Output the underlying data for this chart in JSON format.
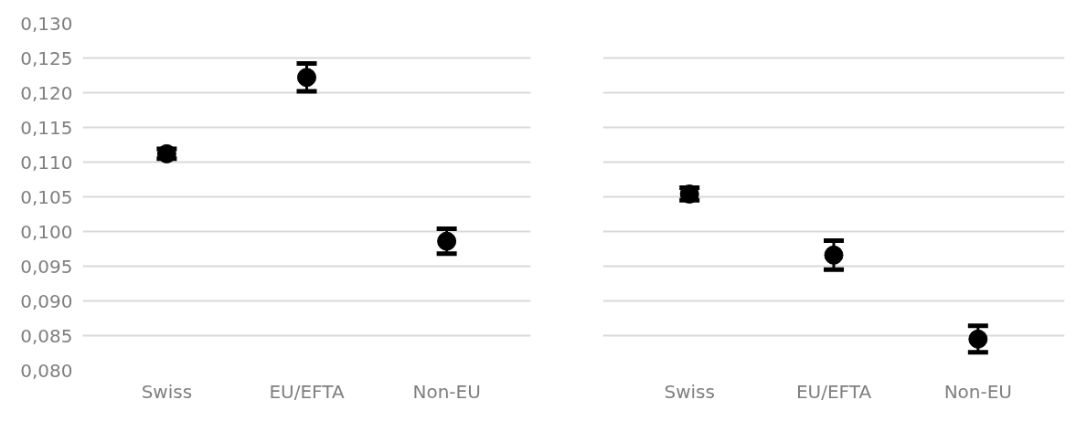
{
  "chart_data": [
    {
      "type": "scatter",
      "categories": [
        "Swiss",
        "EU/EFTA",
        "Non-EU"
      ],
      "marker": "circle",
      "grid": "y",
      "ylim": [
        0.08,
        0.13
      ],
      "yticks": [
        {
          "value": 0.08,
          "label": "0,080"
        },
        {
          "value": 0.085,
          "label": "0,085"
        },
        {
          "value": 0.09,
          "label": "0,090"
        },
        {
          "value": 0.095,
          "label": "0,095"
        },
        {
          "value": 0.1,
          "label": "0,100"
        },
        {
          "value": 0.105,
          "label": "0,105"
        },
        {
          "value": 0.11,
          "label": "0,110"
        },
        {
          "value": 0.115,
          "label": "0,115"
        },
        {
          "value": 0.12,
          "label": "0,120"
        },
        {
          "value": 0.125,
          "label": "0,125"
        },
        {
          "value": 0.13,
          "label": "0,130"
        }
      ],
      "series": [
        {
          "color": "#000000",
          "values": [
            0.1112,
            0.1222,
            0.0986
          ],
          "errors": [
            0.0007,
            0.002,
            0.0018
          ]
        }
      ]
    },
    {
      "type": "scatter",
      "categories": [
        "Swiss",
        "EU/EFTA",
        "Non-EU"
      ],
      "marker": "circle",
      "grid": "y",
      "ylim": [
        0.08,
        0.13
      ],
      "tick_labels": "x",
      "yticks": [
        0.08,
        0.085,
        0.09,
        0.095,
        0.1,
        0.105,
        0.11,
        0.115,
        0.12,
        0.125,
        0.13
      ],
      "series": [
        {
          "color": "#000000",
          "values": [
            0.1054,
            0.0966,
            0.0845
          ],
          "errors": [
            0.0009,
            0.0021,
            0.0019
          ]
        }
      ]
    }
  ]
}
